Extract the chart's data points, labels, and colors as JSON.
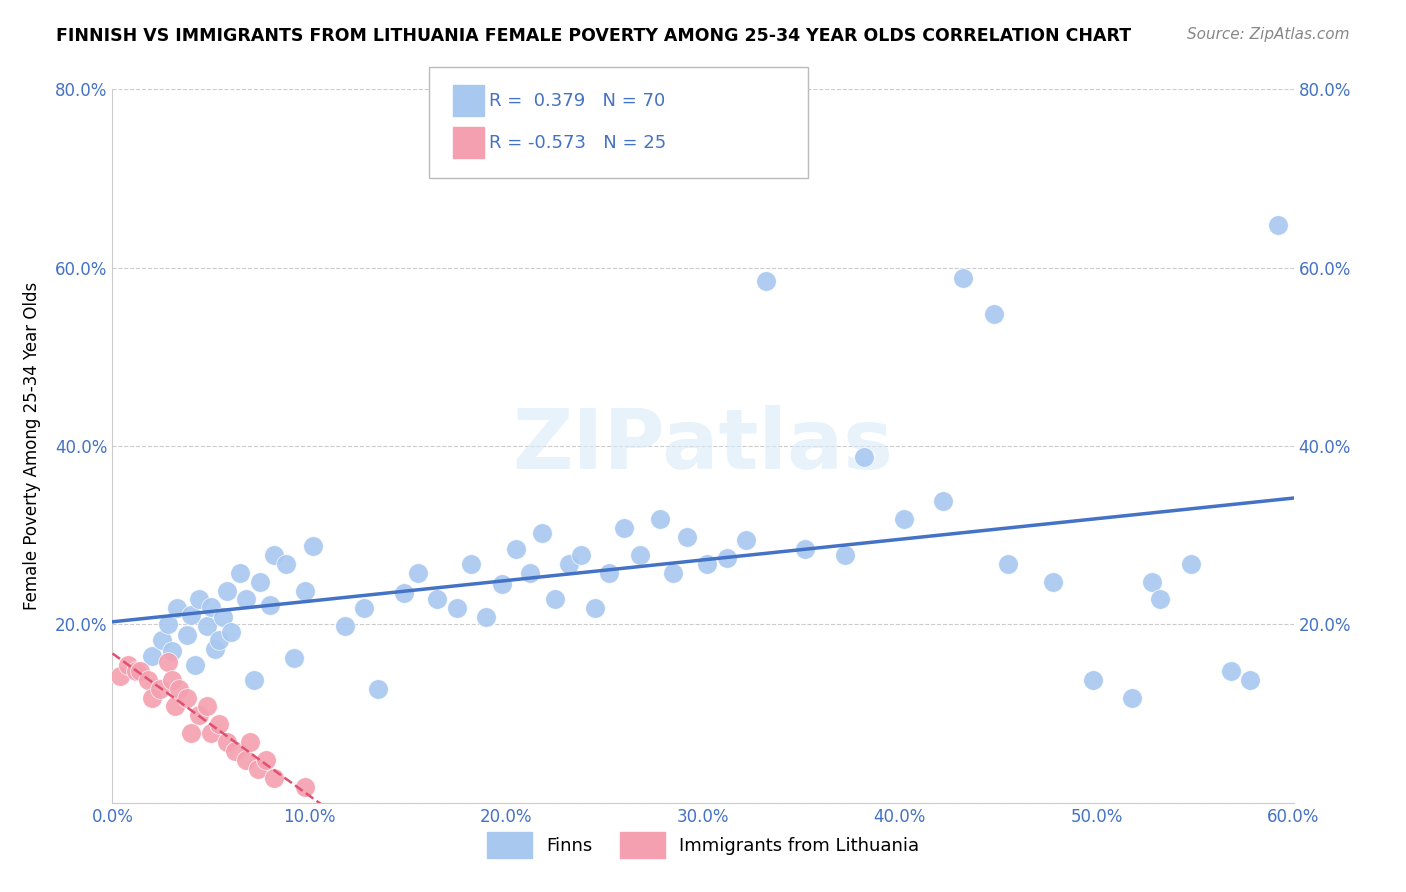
{
  "title": "FINNISH VS IMMIGRANTS FROM LITHUANIA FEMALE POVERTY AMONG 25-34 YEAR OLDS CORRELATION CHART",
  "source": "Source: ZipAtlas.com",
  "ylabel": "Female Poverty Among 25-34 Year Olds",
  "xlim": [
    0.0,
    0.6
  ],
  "ylim": [
    0.0,
    0.8
  ],
  "ytick_values": [
    0.0,
    0.2,
    0.4,
    0.6,
    0.8
  ],
  "xtick_values": [
    0.0,
    0.1,
    0.2,
    0.3,
    0.4,
    0.5,
    0.6
  ],
  "finns_color": "#a8c8f0",
  "lithuania_color": "#f4a0b0",
  "line_finn_color": "#4472c4",
  "line_lith_color": "#e05070",
  "R_finn": 0.379,
  "N_finn": 70,
  "R_lith": -0.573,
  "N_lith": 25,
  "watermark": "ZIPatlas",
  "finns_x": [
    0.02,
    0.025,
    0.028,
    0.03,
    0.033,
    0.038,
    0.04,
    0.042,
    0.044,
    0.048,
    0.05,
    0.052,
    0.054,
    0.056,
    0.058,
    0.06,
    0.065,
    0.068,
    0.072,
    0.075,
    0.08,
    0.082,
    0.088,
    0.092,
    0.098,
    0.102,
    0.118,
    0.128,
    0.135,
    0.148,
    0.155,
    0.165,
    0.175,
    0.182,
    0.19,
    0.198,
    0.205,
    0.212,
    0.218,
    0.225,
    0.232,
    0.238,
    0.245,
    0.252,
    0.26,
    0.268,
    0.278,
    0.285,
    0.292,
    0.302,
    0.312,
    0.322,
    0.332,
    0.352,
    0.372,
    0.382,
    0.402,
    0.422,
    0.432,
    0.448,
    0.455,
    0.478,
    0.498,
    0.518,
    0.528,
    0.548,
    0.568,
    0.578,
    0.592,
    0.532
  ],
  "finns_y": [
    0.165,
    0.182,
    0.2,
    0.17,
    0.218,
    0.188,
    0.21,
    0.155,
    0.228,
    0.198,
    0.22,
    0.172,
    0.182,
    0.208,
    0.238,
    0.192,
    0.258,
    0.228,
    0.138,
    0.248,
    0.222,
    0.278,
    0.268,
    0.162,
    0.238,
    0.288,
    0.198,
    0.218,
    0.128,
    0.235,
    0.258,
    0.228,
    0.218,
    0.268,
    0.208,
    0.245,
    0.285,
    0.258,
    0.302,
    0.228,
    0.268,
    0.278,
    0.218,
    0.258,
    0.308,
    0.278,
    0.318,
    0.258,
    0.298,
    0.268,
    0.275,
    0.295,
    0.585,
    0.285,
    0.278,
    0.388,
    0.318,
    0.338,
    0.588,
    0.548,
    0.268,
    0.248,
    0.138,
    0.118,
    0.248,
    0.268,
    0.148,
    0.138,
    0.648,
    0.228
  ],
  "lith_x": [
    0.004,
    0.008,
    0.012,
    0.014,
    0.018,
    0.02,
    0.024,
    0.028,
    0.03,
    0.032,
    0.034,
    0.038,
    0.04,
    0.044,
    0.048,
    0.05,
    0.054,
    0.058,
    0.062,
    0.068,
    0.07,
    0.074,
    0.078,
    0.082,
    0.098
  ],
  "lith_y": [
    0.142,
    0.155,
    0.148,
    0.148,
    0.138,
    0.118,
    0.128,
    0.158,
    0.138,
    0.108,
    0.128,
    0.118,
    0.078,
    0.098,
    0.108,
    0.078,
    0.088,
    0.068,
    0.058,
    0.048,
    0.068,
    0.038,
    0.048,
    0.028,
    0.018
  ]
}
